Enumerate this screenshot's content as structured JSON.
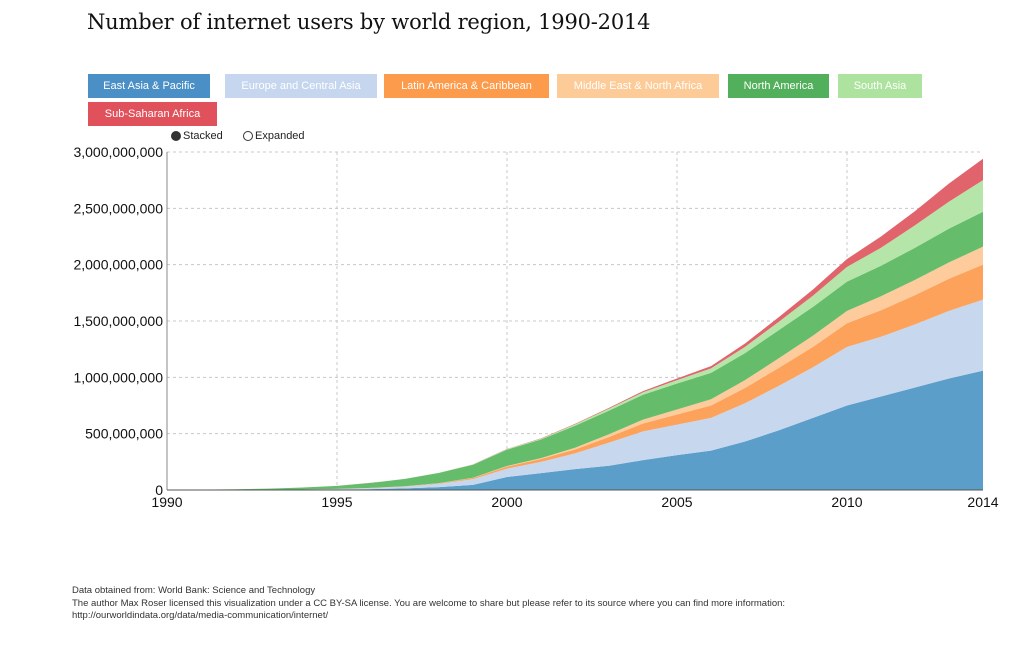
{
  "title": "Number of internet users by world region, 1990-2014",
  "legend": [
    {
      "label": "East Asia & Pacific",
      "color": "#4a8fc5",
      "text_color": "#ffffff"
    },
    {
      "label": "Europe and Central Asia",
      "color": "#c5d6ee",
      "text_color": "#ffffff"
    },
    {
      "label": "Latin America & Caribbean",
      "color": "#fd9b4c",
      "text_color": "#ffffff"
    },
    {
      "label": "Middle East & North Africa",
      "color": "#fdcb98",
      "text_color": "#ffffff"
    },
    {
      "label": "North America",
      "color": "#52b05c",
      "text_color": "#ffffff"
    },
    {
      "label": "South Asia",
      "color": "#ade39f",
      "text_color": "#ffffff"
    },
    {
      "label": "Sub-Saharan Africa",
      "color": "#e0515b",
      "text_color": "#ffffff"
    }
  ],
  "view_toggle": {
    "stacked_label": "Stacked",
    "expanded_label": "Expanded",
    "selected": "Stacked"
  },
  "footer": {
    "line1": "Data obtained from: World Bank: Science and Technology",
    "line2": "The author Max Roser licensed this visualization under a CC BY-SA license. You are welcome to share but please refer to its source where you can find more information:",
    "line3": "http://ourworldindata.org/data/media-communication/internet/"
  },
  "chart_data": {
    "type": "area",
    "stacked": true,
    "title": "Number of internet users by world region, 1990-2014",
    "xlabel": "",
    "ylabel": "",
    "x": [
      1990,
      1991,
      1992,
      1993,
      1994,
      1995,
      1996,
      1997,
      1998,
      1999,
      2000,
      2001,
      2002,
      2003,
      2004,
      2005,
      2006,
      2007,
      2008,
      2009,
      2010,
      2011,
      2012,
      2013,
      2014
    ],
    "xlim": [
      1990,
      2014
    ],
    "ylim": [
      0,
      3000000000
    ],
    "x_ticks": [
      "1990",
      "1995",
      "2000",
      "2005",
      "2010",
      "2014"
    ],
    "y_ticks": [
      "0",
      "500,000,000",
      "1,000,000,000",
      "1,500,000,000",
      "2,000,000,000",
      "2,500,000,000",
      "3,000,000,000"
    ],
    "grid": true,
    "legend_position": "top",
    "series": [
      {
        "name": "East Asia & Pacific",
        "color": "#5b9ec9",
        "values": [
          0,
          100000,
          300000,
          800000,
          2000000,
          4000000,
          8000000,
          14000000,
          25000000,
          45000000,
          115000000,
          150000000,
          185000000,
          215000000,
          265000000,
          310000000,
          350000000,
          430000000,
          530000000,
          640000000,
          750000000,
          830000000,
          910000000,
          990000000,
          1060000000
        ]
      },
      {
        "name": "Europe and Central Asia",
        "color": "#c6d7ee",
        "values": [
          0,
          100000,
          400000,
          1000000,
          2500000,
          5000000,
          9000000,
          16000000,
          30000000,
          52000000,
          75000000,
          100000000,
          140000000,
          205000000,
          255000000,
          270000000,
          290000000,
          340000000,
          395000000,
          450000000,
          520000000,
          530000000,
          560000000,
          600000000,
          630000000
        ]
      },
      {
        "name": "Latin America & Caribbean",
        "color": "#fda25a",
        "values": [
          0,
          0,
          20000,
          50000,
          150000,
          500000,
          1200000,
          2500000,
          5000000,
          9000000,
          18000000,
          25000000,
          35000000,
          50000000,
          70000000,
          90000000,
          110000000,
          135000000,
          160000000,
          180000000,
          210000000,
          235000000,
          260000000,
          285000000,
          310000000
        ]
      },
      {
        "name": "Middle East & North Africa",
        "color": "#fdcb9c",
        "values": [
          0,
          0,
          5000,
          10000,
          30000,
          100000,
          300000,
          700000,
          1500000,
          3000000,
          5000000,
          8000000,
          15000000,
          25000000,
          35000000,
          45000000,
          55000000,
          70000000,
          85000000,
          100000000,
          110000000,
          125000000,
          135000000,
          145000000,
          160000000
        ]
      },
      {
        "name": "North America",
        "color": "#65bd6c",
        "values": [
          2000000,
          3500000,
          6000000,
          10000000,
          18000000,
          27000000,
          45000000,
          65000000,
          90000000,
          115000000,
          145000000,
          165000000,
          195000000,
          210000000,
          220000000,
          230000000,
          235000000,
          240000000,
          250000000,
          255000000,
          260000000,
          270000000,
          285000000,
          300000000,
          310000000
        ]
      },
      {
        "name": "South Asia",
        "color": "#b5e5a8",
        "values": [
          0,
          0,
          0,
          2000,
          10000,
          50000,
          200000,
          500000,
          1200000,
          2500000,
          5000000,
          7000000,
          12000000,
          17000000,
          23000000,
          30000000,
          40000000,
          55000000,
          75000000,
          100000000,
          130000000,
          160000000,
          200000000,
          240000000,
          280000000
        ]
      },
      {
        "name": "Sub-Saharan Africa",
        "color": "#e1636c",
        "values": [
          0,
          0,
          0,
          1000,
          5000,
          20000,
          100000,
          300000,
          600000,
          1200000,
          2000000,
          3500000,
          5000000,
          7000000,
          10000000,
          15000000,
          20000000,
          30000000,
          40000000,
          55000000,
          70000000,
          100000000,
          125000000,
          160000000,
          190000000
        ]
      }
    ]
  }
}
